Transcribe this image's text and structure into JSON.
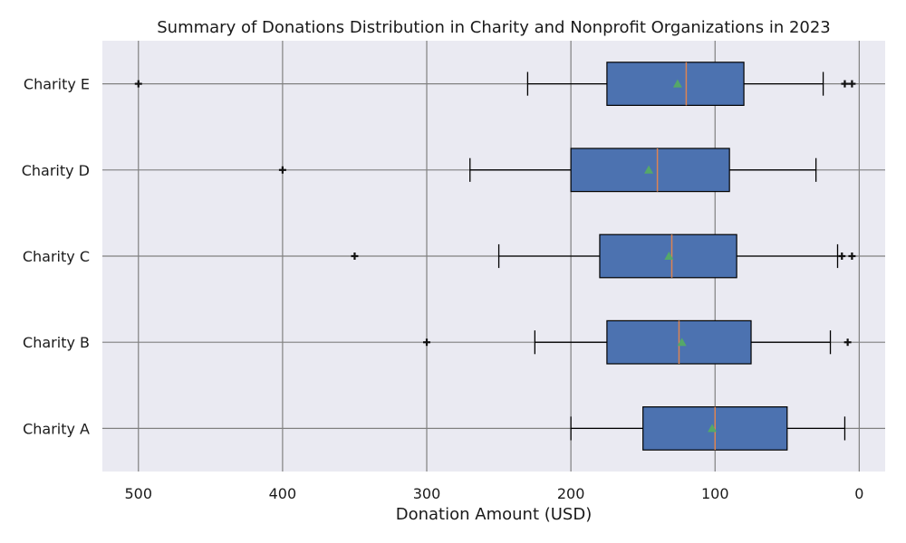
{
  "chart_data": {
    "type": "boxplot",
    "orientation": "horizontal",
    "title": "Summary of Donations Distribution in Charity and Nonprofit Organizations in 2023",
    "xlabel": "Donation Amount (USD)",
    "ylabel": "",
    "x_inverted": true,
    "xlim": [
      525,
      -18
    ],
    "x_ticks": [
      500,
      400,
      300,
      200,
      100,
      0
    ],
    "grid": true,
    "categories": [
      "Charity A",
      "Charity B",
      "Charity C",
      "Charity D",
      "Charity E"
    ],
    "boxes": [
      {
        "name": "Charity A",
        "whisker_low": 10,
        "q1": 50,
        "median": 100,
        "q3": 150,
        "whisker_high": 200,
        "mean": 102,
        "outliers": []
      },
      {
        "name": "Charity B",
        "whisker_low": 20,
        "q1": 75,
        "median": 125,
        "q3": 175,
        "whisker_high": 225,
        "mean": 123,
        "outliers": [
          300,
          8
        ]
      },
      {
        "name": "Charity C",
        "whisker_low": 15,
        "q1": 85,
        "median": 130,
        "q3": 180,
        "whisker_high": 250,
        "mean": 132,
        "outliers": [
          350,
          12,
          5
        ]
      },
      {
        "name": "Charity D",
        "whisker_low": 30,
        "q1": 90,
        "median": 140,
        "q3": 200,
        "whisker_high": 270,
        "mean": 146,
        "outliers": [
          400
        ]
      },
      {
        "name": "Charity E",
        "whisker_low": 25,
        "q1": 80,
        "median": 120,
        "q3": 175,
        "whisker_high": 230,
        "mean": 126,
        "outliers": [
          500,
          10,
          5
        ]
      }
    ],
    "colors": {
      "plot_background": "#EAEAF2",
      "box_fill": "#4C72B0",
      "box_edge": "#000000",
      "median": "#DD8452",
      "mean": "#55A868",
      "grid": "#808080",
      "text": "#1a1a1a"
    }
  }
}
